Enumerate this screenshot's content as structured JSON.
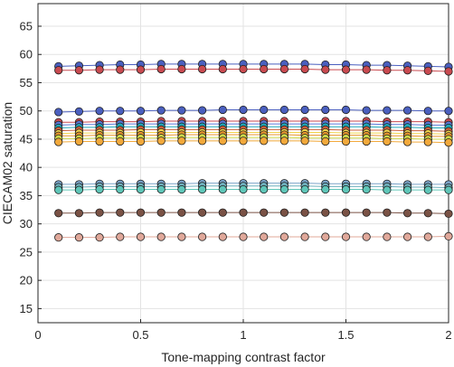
{
  "chart_data": {
    "type": "line",
    "xlabel": "Tone-mapping contrast factor",
    "ylabel": "CIECAM02 saturation",
    "xlim": [
      0,
      2
    ],
    "ylim": [
      12.5,
      69
    ],
    "x_ticks": [
      "0",
      "0.5",
      "1",
      "1.5",
      "2"
    ],
    "y_ticks": [
      "15",
      "20",
      "25",
      "30",
      "35",
      "40",
      "45",
      "50",
      "55",
      "60",
      "65"
    ],
    "grid": true,
    "x": [
      0.1,
      0.2,
      0.3,
      0.4,
      0.5,
      0.6,
      0.7,
      0.8,
      0.9,
      1.0,
      1.1,
      1.2,
      1.3,
      1.4,
      1.5,
      1.6,
      1.7,
      1.8,
      1.9,
      2.0
    ],
    "series": [
      {
        "color": "#4a5fbf",
        "values": [
          57.9,
          58.0,
          58.1,
          58.2,
          58.2,
          58.3,
          58.3,
          58.3,
          58.3,
          58.3,
          58.3,
          58.3,
          58.3,
          58.2,
          58.2,
          58.1,
          58.1,
          58.0,
          57.9,
          57.8
        ]
      },
      {
        "color": "#c94a50",
        "values": [
          57.2,
          57.2,
          57.3,
          57.3,
          57.3,
          57.4,
          57.4,
          57.4,
          57.4,
          57.4,
          57.4,
          57.4,
          57.4,
          57.3,
          57.3,
          57.3,
          57.2,
          57.2,
          57.1,
          57.0
        ]
      },
      {
        "color": "#4a5fbf",
        "values": [
          49.8,
          49.9,
          50.0,
          50.0,
          50.0,
          50.1,
          50.1,
          50.1,
          50.2,
          50.2,
          50.2,
          50.2,
          50.2,
          50.2,
          50.2,
          50.1,
          50.1,
          50.1,
          50.0,
          50.0
        ]
      },
      {
        "color": "#c94a50",
        "values": [
          48.0,
          48.0,
          48.1,
          48.1,
          48.1,
          48.2,
          48.2,
          48.2,
          48.2,
          48.2,
          48.2,
          48.2,
          48.2,
          48.2,
          48.2,
          48.2,
          48.1,
          48.1,
          48.1,
          48.0
        ]
      },
      {
        "color": "#5b78d6",
        "values": [
          47.5,
          47.6,
          47.6,
          47.7,
          47.7,
          47.7,
          47.7,
          47.7,
          47.7,
          47.7,
          47.7,
          47.7,
          47.7,
          47.7,
          47.7,
          47.7,
          47.6,
          47.6,
          47.5,
          47.5
        ]
      },
      {
        "color": "#1fa8b8",
        "values": [
          47.0,
          47.1,
          47.1,
          47.2,
          47.2,
          47.2,
          47.2,
          47.2,
          47.2,
          47.2,
          47.2,
          47.2,
          47.2,
          47.2,
          47.2,
          47.2,
          47.1,
          47.1,
          47.0,
          47.0
        ]
      },
      {
        "color": "#cc5f3c",
        "values": [
          46.5,
          46.6,
          46.6,
          46.6,
          46.7,
          46.7,
          46.7,
          46.7,
          46.7,
          46.7,
          46.7,
          46.7,
          46.7,
          46.7,
          46.6,
          46.6,
          46.6,
          46.5,
          46.5,
          46.4
        ]
      },
      {
        "color": "#f1d34a",
        "values": [
          46.0,
          46.1,
          46.1,
          46.1,
          46.2,
          46.2,
          46.2,
          46.2,
          46.2,
          46.2,
          46.2,
          46.2,
          46.2,
          46.2,
          46.1,
          46.1,
          46.1,
          46.0,
          46.0,
          45.9
        ]
      },
      {
        "color": "#e8952f",
        "values": [
          45.6,
          45.6,
          45.7,
          45.7,
          45.7,
          45.7,
          45.8,
          45.8,
          45.8,
          45.8,
          45.8,
          45.8,
          45.7,
          45.7,
          45.7,
          45.7,
          45.6,
          45.6,
          45.5,
          45.5
        ]
      },
      {
        "color": "#cbd84a",
        "values": [
          45.1,
          45.1,
          45.2,
          45.2,
          45.2,
          45.2,
          45.3,
          45.3,
          45.3,
          45.3,
          45.3,
          45.3,
          45.2,
          45.2,
          45.2,
          45.2,
          45.1,
          45.1,
          45.0,
          45.0
        ]
      },
      {
        "color": "#f2a93b",
        "values": [
          44.5,
          44.6,
          44.6,
          44.6,
          44.6,
          44.7,
          44.7,
          44.7,
          44.7,
          44.7,
          44.7,
          44.7,
          44.7,
          44.6,
          44.6,
          44.6,
          44.6,
          44.5,
          44.5,
          44.4
        ]
      },
      {
        "color": "#7aa3c8",
        "values": [
          37.0,
          37.0,
          37.1,
          37.1,
          37.1,
          37.1,
          37.1,
          37.2,
          37.2,
          37.2,
          37.2,
          37.2,
          37.2,
          37.1,
          37.1,
          37.1,
          37.1,
          37.0,
          37.0,
          37.0
        ]
      },
      {
        "color": "#6fb0bd",
        "values": [
          36.5,
          36.5,
          36.6,
          36.6,
          36.6,
          36.6,
          36.6,
          36.7,
          36.7,
          36.7,
          36.7,
          36.7,
          36.7,
          36.6,
          36.6,
          36.6,
          36.6,
          36.5,
          36.5,
          36.4
        ]
      },
      {
        "color": "#5fc6b8",
        "values": [
          36.0,
          36.0,
          36.1,
          36.1,
          36.1,
          36.1,
          36.1,
          36.1,
          36.1,
          36.1,
          36.1,
          36.1,
          36.1,
          36.1,
          36.1,
          36.1,
          36.0,
          36.0,
          36.0,
          36.0
        ]
      },
      {
        "color": "#7a5245",
        "values": [
          31.9,
          31.9,
          32.0,
          32.0,
          32.0,
          32.0,
          32.0,
          32.0,
          32.0,
          32.0,
          32.0,
          32.0,
          32.0,
          32.0,
          32.0,
          32.0,
          32.0,
          31.9,
          31.9,
          31.8
        ]
      },
      {
        "color": "#e0a89a",
        "values": [
          27.6,
          27.6,
          27.6,
          27.7,
          27.7,
          27.7,
          27.7,
          27.7,
          27.7,
          27.7,
          27.7,
          27.7,
          27.7,
          27.7,
          27.7,
          27.7,
          27.7,
          27.7,
          27.7,
          27.8
        ]
      }
    ]
  }
}
